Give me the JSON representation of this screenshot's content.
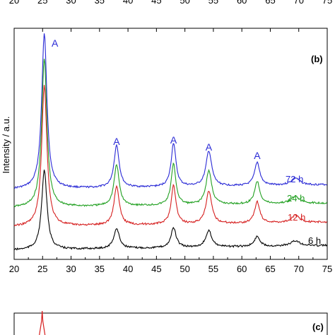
{
  "chart_data": [
    {
      "type": "line",
      "panel_label": "(b)",
      "xlabel": "",
      "ylabel": "Intensity / a.u.",
      "xlim": [
        20,
        75
      ],
      "x_ticks": [
        20,
        25,
        30,
        35,
        40,
        45,
        50,
        55,
        60,
        65,
        70,
        75
      ],
      "grid": false,
      "peak_labels": [
        {
          "text": "A",
          "x": 25.3
        },
        {
          "text": "A",
          "x": 38.0
        },
        {
          "text": "A",
          "x": 48.0
        },
        {
          "text": "A",
          "x": 54.2
        },
        {
          "text": "A",
          "x": 62.7
        }
      ],
      "series": [
        {
          "name": "72 h",
          "color": "#2a2ad6",
          "x": [
            20,
            25.3,
            38.0,
            48.0,
            54.2,
            62.7,
            69.4,
            75
          ],
          "y": [
            0,
            0,
            0,
            0,
            0,
            0,
            0,
            0
          ]
        },
        {
          "name": "24 h",
          "color": "#22a022",
          "x": [
            20,
            25.3,
            38.0,
            48.0,
            54.2,
            62.7,
            69.4,
            75
          ],
          "y": [
            0,
            0,
            0,
            0,
            0,
            0,
            0,
            0
          ]
        },
        {
          "name": "12 h",
          "color": "#d62020",
          "x": [
            20,
            25.3,
            38.0,
            48.0,
            54.2,
            62.7,
            69.4,
            75
          ],
          "y": [
            0,
            0,
            0,
            0,
            0,
            0,
            0,
            0
          ]
        },
        {
          "name": "6 h",
          "color": "#000000",
          "x": [
            20,
            25.3,
            38.0,
            48.0,
            54.2,
            62.7,
            69.4,
            75
          ],
          "y": [
            0,
            0,
            0,
            0,
            0,
            0,
            0,
            0
          ]
        }
      ]
    },
    {
      "type": "line",
      "panel_label": "(c)",
      "series": [
        {
          "name": "",
          "color": "#d62020"
        }
      ]
    }
  ],
  "top_fragment": {
    "tick_labels": [
      "20",
      "25",
      "30",
      "35",
      "40",
      "45",
      "50",
      "55",
      "60",
      "65",
      "70",
      "75"
    ]
  }
}
